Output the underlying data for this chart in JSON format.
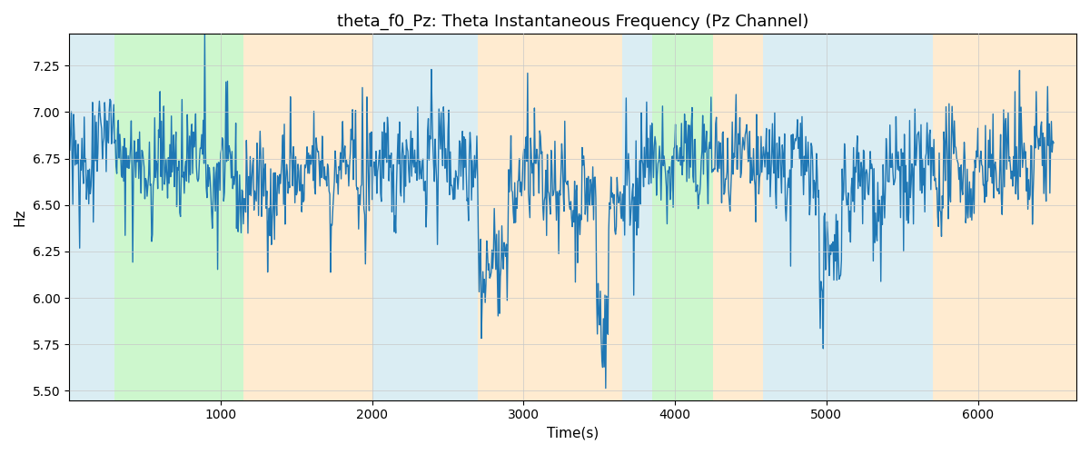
{
  "title": "theta_f0_Pz: Theta Instantaneous Frequency (Pz Channel)",
  "xlabel": "Time(s)",
  "ylabel": "Hz",
  "ylim": [
    5.45,
    7.42
  ],
  "xlim": [
    0,
    6650
  ],
  "bg_regions": [
    {
      "xmin": 0,
      "xmax": 300,
      "color": "#add8e6",
      "alpha": 0.45
    },
    {
      "xmin": 300,
      "xmax": 1150,
      "color": "#90ee90",
      "alpha": 0.45
    },
    {
      "xmin": 1150,
      "xmax": 2000,
      "color": "#ffdcaa",
      "alpha": 0.55
    },
    {
      "xmin": 2000,
      "xmax": 2700,
      "color": "#add8e6",
      "alpha": 0.45
    },
    {
      "xmin": 2700,
      "xmax": 3650,
      "color": "#ffdcaa",
      "alpha": 0.55
    },
    {
      "xmin": 3650,
      "xmax": 3850,
      "color": "#add8e6",
      "alpha": 0.45
    },
    {
      "xmin": 3850,
      "xmax": 4250,
      "color": "#90ee90",
      "alpha": 0.45
    },
    {
      "xmin": 4250,
      "xmax": 4580,
      "color": "#ffdcaa",
      "alpha": 0.55
    },
    {
      "xmin": 4580,
      "xmax": 5050,
      "color": "#add8e6",
      "alpha": 0.45
    },
    {
      "xmin": 5050,
      "xmax": 5700,
      "color": "#add8e6",
      "alpha": 0.45
    },
    {
      "xmin": 5700,
      "xmax": 6650,
      "color": "#ffdcaa",
      "alpha": 0.55
    }
  ],
  "line_color": "#1f77b4",
  "line_width": 1.0,
  "title_fontsize": 13,
  "axis_fontsize": 11,
  "xticks": [
    1000,
    2000,
    3000,
    4000,
    5000,
    6000
  ],
  "yticks": [
    5.5,
    5.75,
    6.0,
    6.25,
    6.5,
    6.75,
    7.0,
    7.25
  ]
}
